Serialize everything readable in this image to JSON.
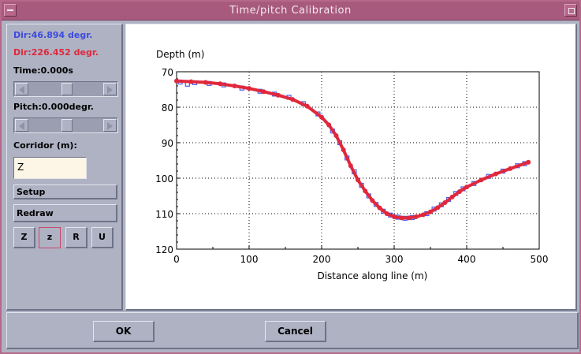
{
  "window": {
    "title": "Time/pitch Calibration"
  },
  "left_panel": {
    "dir1": "Dir:46.894 degr.",
    "dir2": "Dir:226.452 degr.",
    "time_label": "Time:0.000s",
    "time_slider_position": 0.5,
    "pitch_label": "Pitch:0.000degr.",
    "pitch_slider_position": 0.5,
    "corridor_label": "Corridor (m):",
    "corridor_value": "Z",
    "setup_label": "Setup",
    "redraw_label": "Redraw",
    "buttons": [
      "Z",
      "z",
      "R",
      "U"
    ]
  },
  "footer": {
    "ok_label": "OK",
    "cancel_label": "Cancel"
  },
  "colors": {
    "dir1": "#3d4be0",
    "dir2": "#e0283c",
    "series_red": "#e0283c",
    "series_blue": "#4a5ae8"
  },
  "chart_data": {
    "type": "scatter",
    "title": "",
    "xlabel": "Distance along line (m)",
    "ylabel": "Depth (m)",
    "xlim": [
      0,
      500
    ],
    "ylim": [
      70,
      120
    ],
    "y_inverted": true,
    "grid": true,
    "x_ticks": [
      0,
      100,
      200,
      300,
      400,
      500
    ],
    "y_ticks": [
      70,
      80,
      90,
      100,
      110,
      120
    ],
    "series": [
      {
        "x": [
          0,
          20,
          40,
          60,
          80,
          100,
          120,
          140,
          160,
          180,
          200,
          210,
          220,
          230,
          240,
          250,
          260,
          270,
          280,
          290,
          300,
          310,
          320,
          330,
          340,
          350,
          360,
          370,
          380,
          390,
          400,
          420,
          440,
          460,
          485
        ],
        "y": [
          72.6,
          72.8,
          73,
          73.4,
          74,
          74.7,
          75.6,
          76.6,
          77.8,
          79.7,
          82.8,
          85,
          88,
          92,
          96.5,
          100.5,
          103.6,
          106.3,
          108.4,
          110,
          110.9,
          111.2,
          111.2,
          110.9,
          110.3,
          109.5,
          108.3,
          106.9,
          105.3,
          103.8,
          102.5,
          100.5,
          98.8,
          97.3,
          95.5
        ]
      },
      {
        "x": [
          5,
          15,
          25,
          45,
          65,
          90,
          115,
          135,
          155,
          175,
          195,
          215,
          225,
          235,
          245,
          255,
          265,
          275,
          285,
          295,
          305,
          315,
          325,
          345,
          355,
          365,
          375,
          385,
          395,
          410,
          430,
          450,
          470,
          480
        ],
        "y": [
          72.9,
          73.5,
          73.1,
          73.3,
          73.7,
          74.6,
          75.5,
          76.3,
          77.2,
          79,
          81.9,
          86.7,
          90,
          94.3,
          98.2,
          102,
          105,
          107.4,
          109.3,
          110.4,
          111,
          111.3,
          111.1,
          110,
          108.7,
          107.5,
          106,
          104.3,
          103,
          101.5,
          99.5,
          98,
          96.5,
          95.9
        ]
      }
    ]
  }
}
